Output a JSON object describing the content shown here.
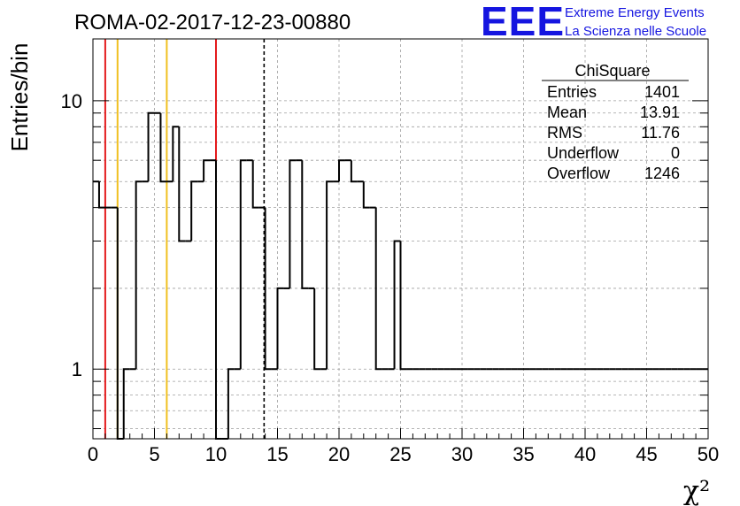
{
  "colors": {
    "background": "#ffffff",
    "histogram": "#000000",
    "grid": "#9e9e9e",
    "red_line": "#e41a1c",
    "yellow_line": "#f0c020",
    "mean_line": "#000000",
    "logo": "#1515e0"
  },
  "logo": {
    "mark": "EEE",
    "line1": "Extreme Energy Events",
    "line2": "La Scienza nelle Scuole"
  },
  "chart_data": {
    "type": "bar",
    "title": "ROMA-02-2017-12-23-00880",
    "xlabel": "χ²",
    "ylabel": "Entries/bin",
    "xlim": [
      0,
      50
    ],
    "ylim": [
      0.55,
      17
    ],
    "y_scale": "log",
    "bin_width": 0.5,
    "grid": true,
    "x_ticks": [
      "0",
      "5",
      "10",
      "15",
      "20",
      "25",
      "30",
      "35",
      "40",
      "45",
      "50"
    ],
    "y_ticks": [
      "1",
      "10"
    ],
    "values": [
      5,
      4,
      4,
      4,
      0,
      1,
      1,
      5,
      5,
      9,
      9,
      5,
      5,
      8,
      3,
      3,
      5,
      5,
      6,
      6,
      0,
      0,
      1,
      1,
      6,
      6,
      4,
      4,
      1,
      1,
      2,
      2,
      6,
      6,
      2,
      2,
      1,
      1,
      5,
      5,
      6,
      6,
      5,
      5,
      4,
      4,
      1,
      1,
      1,
      3,
      1,
      1,
      1,
      1,
      1,
      1,
      1,
      1,
      1,
      1,
      1,
      1,
      1,
      1,
      1,
      1,
      1,
      1,
      1,
      1,
      1,
      1,
      1,
      1,
      1,
      1,
      1,
      1,
      1,
      1,
      1,
      1,
      1,
      1,
      1,
      1,
      1,
      1,
      1,
      1,
      1,
      1,
      1,
      1,
      1,
      1,
      1,
      1,
      1,
      1
    ],
    "vertical_lines": [
      {
        "x": 1,
        "color": "red",
        "style": "solid"
      },
      {
        "x": 2,
        "color": "yellow",
        "style": "solid"
      },
      {
        "x": 6,
        "color": "yellow",
        "style": "solid"
      },
      {
        "x": 10,
        "color": "red",
        "style": "solid"
      },
      {
        "x": 13.91,
        "color": "black",
        "style": "dashed"
      }
    ],
    "stats_box": {
      "title": "ChiSquare",
      "rows": [
        {
          "label": "Entries",
          "value": "1401"
        },
        {
          "label": "Mean",
          "value": "13.91"
        },
        {
          "label": "RMS",
          "value": "11.76"
        },
        {
          "label": "Underflow",
          "value": "0"
        },
        {
          "label": "Overflow",
          "value": "1246"
        }
      ]
    }
  }
}
